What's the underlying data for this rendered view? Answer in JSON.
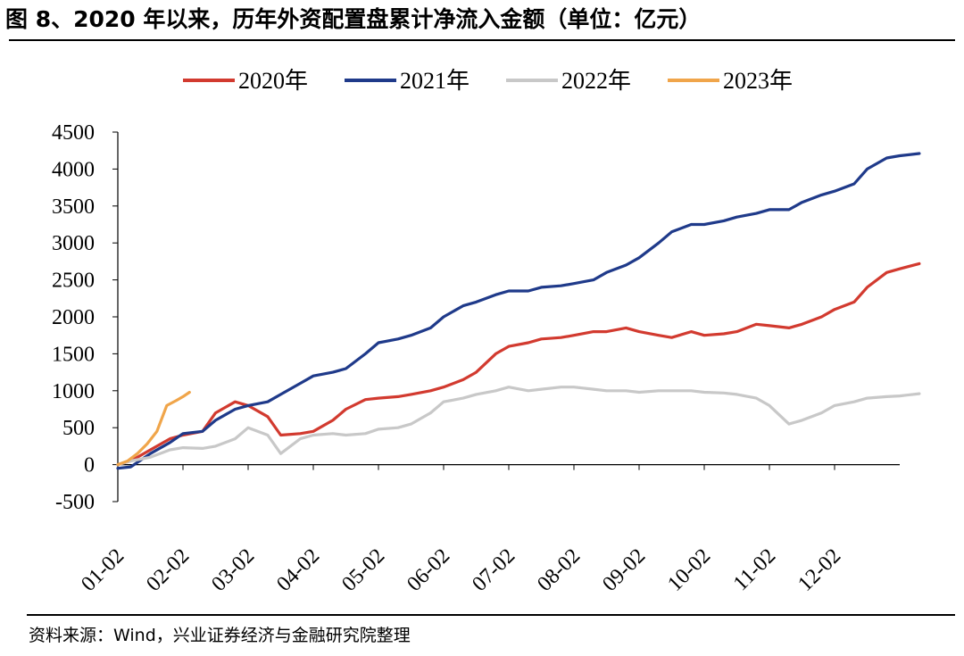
{
  "title": "图 8、2020 年以来，历年外资配置盘累计净流入金额（单位：亿元）",
  "source": "资料来源：Wind，兴业证券经济与金融研究院整理",
  "chart_data": {
    "type": "line",
    "title": "",
    "xlabel": "",
    "ylabel": "",
    "ylim": [
      -500,
      4500
    ],
    "yticks": [
      "4500",
      "4000",
      "3500",
      "3000",
      "2500",
      "2000",
      "1500",
      "1000",
      "500",
      "0",
      "-500"
    ],
    "xticks": [
      "01-02",
      "02-02",
      "03-02",
      "04-02",
      "05-02",
      "06-02",
      "07-02",
      "08-02",
      "09-02",
      "10-02",
      "11-02",
      "12-02"
    ],
    "legend_position": "top-center",
    "grid": false,
    "series": [
      {
        "name": "2020年",
        "color": "#d23a2f",
        "points": [
          [
            0,
            0
          ],
          [
            0.2,
            50
          ],
          [
            0.5,
            200
          ],
          [
            0.8,
            350
          ],
          [
            1.0,
            400
          ],
          [
            1.3,
            450
          ],
          [
            1.5,
            700
          ],
          [
            1.8,
            850
          ],
          [
            2.0,
            800
          ],
          [
            2.3,
            650
          ],
          [
            2.5,
            400
          ],
          [
            2.8,
            420
          ],
          [
            3.0,
            450
          ],
          [
            3.3,
            600
          ],
          [
            3.5,
            750
          ],
          [
            3.8,
            880
          ],
          [
            4.0,
            900
          ],
          [
            4.3,
            920
          ],
          [
            4.5,
            950
          ],
          [
            4.8,
            1000
          ],
          [
            5.0,
            1050
          ],
          [
            5.3,
            1150
          ],
          [
            5.5,
            1250
          ],
          [
            5.8,
            1500
          ],
          [
            6.0,
            1600
          ],
          [
            6.3,
            1650
          ],
          [
            6.5,
            1700
          ],
          [
            6.8,
            1720
          ],
          [
            7.0,
            1750
          ],
          [
            7.3,
            1800
          ],
          [
            7.5,
            1800
          ],
          [
            7.8,
            1850
          ],
          [
            8.0,
            1800
          ],
          [
            8.3,
            1750
          ],
          [
            8.5,
            1720
          ],
          [
            8.8,
            1800
          ],
          [
            9.0,
            1750
          ],
          [
            9.3,
            1770
          ],
          [
            9.5,
            1800
          ],
          [
            9.8,
            1900
          ],
          [
            10.0,
            1880
          ],
          [
            10.3,
            1850
          ],
          [
            10.5,
            1900
          ],
          [
            10.8,
            2000
          ],
          [
            11.0,
            2100
          ],
          [
            11.3,
            2200
          ],
          [
            11.5,
            2400
          ],
          [
            11.8,
            2600
          ],
          [
            12.0,
            2650
          ],
          [
            12.3,
            2720
          ]
        ]
      },
      {
        "name": "2021年",
        "color": "#1f3a8a",
        "points": [
          [
            0,
            -50
          ],
          [
            0.2,
            -30
          ],
          [
            0.5,
            150
          ],
          [
            0.8,
            300
          ],
          [
            1.0,
            420
          ],
          [
            1.3,
            450
          ],
          [
            1.5,
            600
          ],
          [
            1.8,
            750
          ],
          [
            2.0,
            800
          ],
          [
            2.3,
            850
          ],
          [
            2.5,
            950
          ],
          [
            2.8,
            1100
          ],
          [
            3.0,
            1200
          ],
          [
            3.3,
            1250
          ],
          [
            3.5,
            1300
          ],
          [
            3.8,
            1500
          ],
          [
            4.0,
            1650
          ],
          [
            4.3,
            1700
          ],
          [
            4.5,
            1750
          ],
          [
            4.8,
            1850
          ],
          [
            5.0,
            2000
          ],
          [
            5.3,
            2150
          ],
          [
            5.5,
            2200
          ],
          [
            5.8,
            2300
          ],
          [
            6.0,
            2350
          ],
          [
            6.3,
            2350
          ],
          [
            6.5,
            2400
          ],
          [
            6.8,
            2420
          ],
          [
            7.0,
            2450
          ],
          [
            7.3,
            2500
          ],
          [
            7.5,
            2600
          ],
          [
            7.8,
            2700
          ],
          [
            8.0,
            2800
          ],
          [
            8.3,
            3000
          ],
          [
            8.5,
            3150
          ],
          [
            8.8,
            3250
          ],
          [
            9.0,
            3250
          ],
          [
            9.3,
            3300
          ],
          [
            9.5,
            3350
          ],
          [
            9.8,
            3400
          ],
          [
            10.0,
            3450
          ],
          [
            10.3,
            3450
          ],
          [
            10.5,
            3550
          ],
          [
            10.8,
            3650
          ],
          [
            11.0,
            3700
          ],
          [
            11.3,
            3800
          ],
          [
            11.5,
            4000
          ],
          [
            11.8,
            4150
          ],
          [
            12.0,
            4180
          ],
          [
            12.3,
            4210
          ]
        ]
      },
      {
        "name": "2022年",
        "color": "#c8c8c8",
        "points": [
          [
            0,
            0
          ],
          [
            0.2,
            50
          ],
          [
            0.5,
            100
          ],
          [
            0.8,
            200
          ],
          [
            1.0,
            230
          ],
          [
            1.3,
            220
          ],
          [
            1.5,
            250
          ],
          [
            1.8,
            350
          ],
          [
            2.0,
            500
          ],
          [
            2.3,
            400
          ],
          [
            2.5,
            150
          ],
          [
            2.8,
            350
          ],
          [
            3.0,
            400
          ],
          [
            3.3,
            420
          ],
          [
            3.5,
            400
          ],
          [
            3.8,
            420
          ],
          [
            4.0,
            480
          ],
          [
            4.3,
            500
          ],
          [
            4.5,
            550
          ],
          [
            4.8,
            700
          ],
          [
            5.0,
            850
          ],
          [
            5.3,
            900
          ],
          [
            5.5,
            950
          ],
          [
            5.8,
            1000
          ],
          [
            6.0,
            1050
          ],
          [
            6.3,
            1000
          ],
          [
            6.5,
            1020
          ],
          [
            6.8,
            1050
          ],
          [
            7.0,
            1050
          ],
          [
            7.3,
            1020
          ],
          [
            7.5,
            1000
          ],
          [
            7.8,
            1000
          ],
          [
            8.0,
            980
          ],
          [
            8.3,
            1000
          ],
          [
            8.5,
            1000
          ],
          [
            8.8,
            1000
          ],
          [
            9.0,
            980
          ],
          [
            9.3,
            970
          ],
          [
            9.5,
            950
          ],
          [
            9.8,
            900
          ],
          [
            10.0,
            800
          ],
          [
            10.3,
            550
          ],
          [
            10.5,
            600
          ],
          [
            10.8,
            700
          ],
          [
            11.0,
            800
          ],
          [
            11.3,
            850
          ],
          [
            11.5,
            900
          ],
          [
            11.8,
            920
          ],
          [
            12.0,
            930
          ],
          [
            12.3,
            960
          ]
        ]
      },
      {
        "name": "2023年",
        "color": "#f0a54a",
        "points": [
          [
            0,
            0
          ],
          [
            0.15,
            50
          ],
          [
            0.3,
            150
          ],
          [
            0.45,
            280
          ],
          [
            0.6,
            450
          ],
          [
            0.75,
            800
          ],
          [
            0.9,
            870
          ],
          [
            1.0,
            920
          ],
          [
            1.1,
            980
          ]
        ]
      }
    ]
  }
}
